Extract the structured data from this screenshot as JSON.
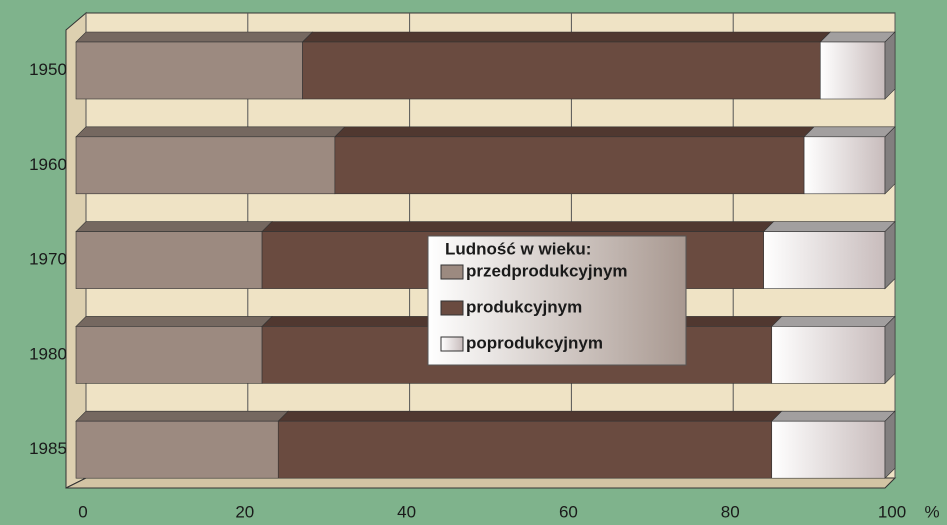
{
  "chart_data": {
    "type": "bar",
    "orientation": "horizontal",
    "stacked": true,
    "categories": [
      "1950",
      "1960",
      "1970",
      "1980",
      "1985"
    ],
    "series": [
      {
        "name": "przedprodukcyjnym",
        "color": "#9c8a80",
        "values": [
          28,
          32,
          23,
          23,
          25
        ]
      },
      {
        "name": "produkcyjnym",
        "color": "#6a4b40",
        "values": [
          64,
          58,
          62,
          63,
          61
        ]
      },
      {
        "name": "poprodukcyjnym",
        "color": "#d8d4d4",
        "values": [
          8,
          10,
          15,
          14,
          14
        ]
      }
    ],
    "legend_title": "Ludność w wieku:",
    "xlim": [
      0,
      100
    ],
    "xticks": [
      0,
      20,
      40,
      60,
      80,
      100
    ],
    "x_unit": "%",
    "grid": true
  }
}
